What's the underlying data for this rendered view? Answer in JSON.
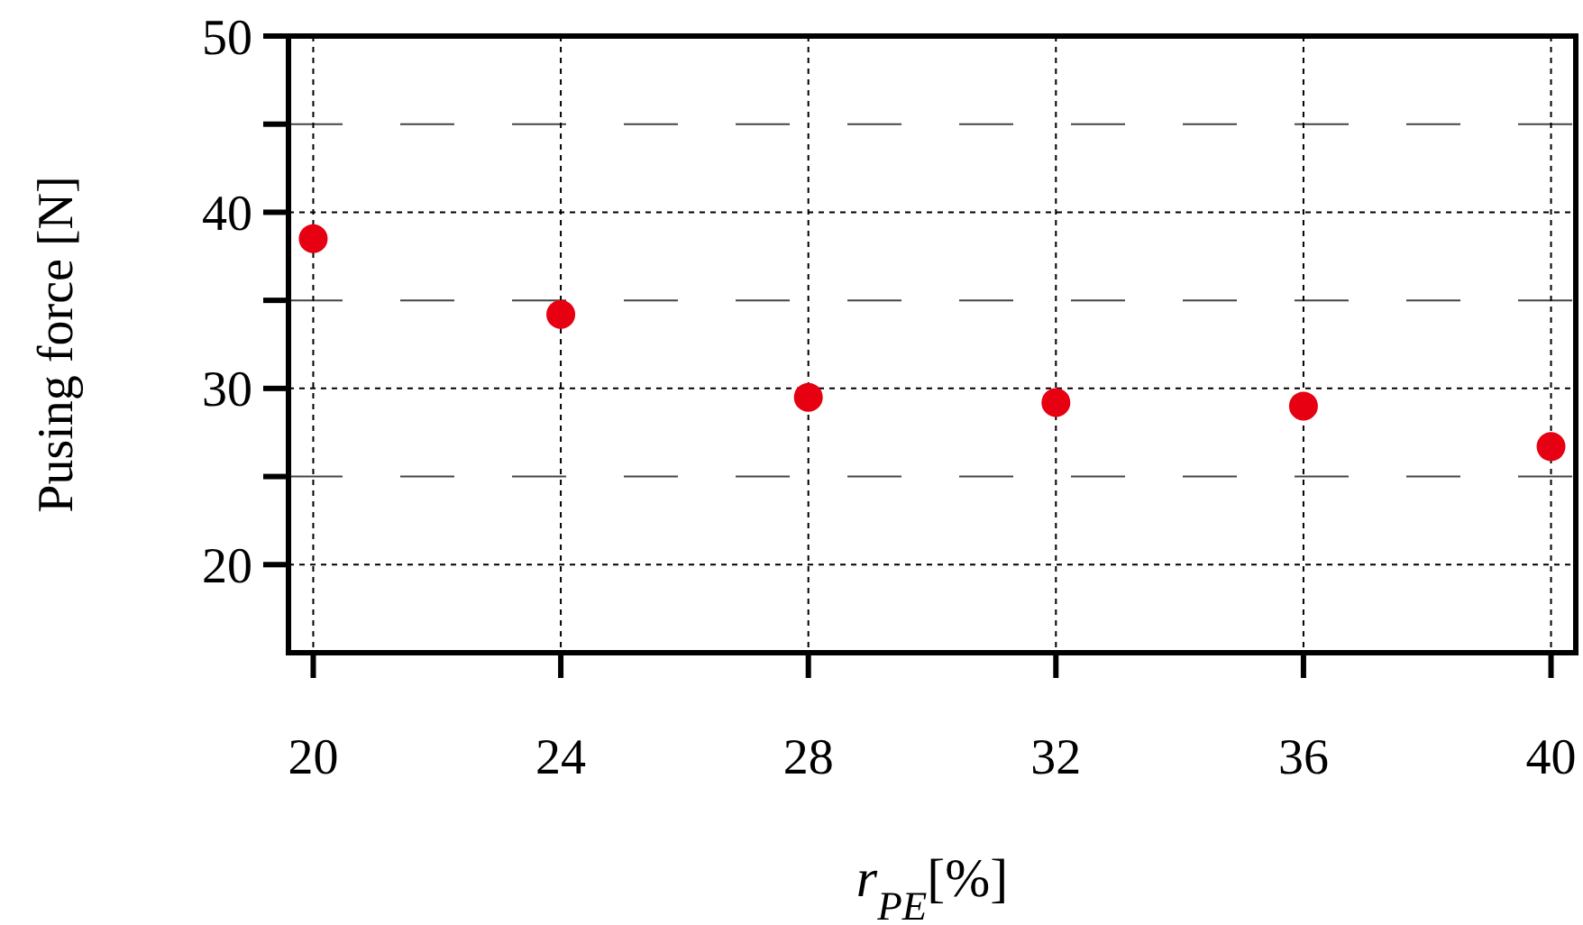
{
  "chart_data": {
    "type": "scatter",
    "xlabel": "r$_{PE}$[%]",
    "ylabel": "Pusing force [N]",
    "x": [
      20,
      24,
      28,
      32,
      36,
      40
    ],
    "series": [
      {
        "color": "#e60012",
        "values": [
          38.5,
          34.2,
          29.5,
          29.2,
          29.0,
          26.7
        ]
      }
    ],
    "xlim": [
      19.6,
      40.4
    ],
    "xticks": [
      20,
      24,
      28,
      32,
      36,
      40
    ],
    "ylim": [
      15,
      50
    ],
    "yticks": [
      20,
      {
        "value": 25,
        "label": null
      },
      30,
      {
        "value": 35,
        "label": null
      },
      40,
      {
        "value": 45,
        "label": null
      },
      50
    ],
    "grid": true,
    "marker": "circle"
  }
}
